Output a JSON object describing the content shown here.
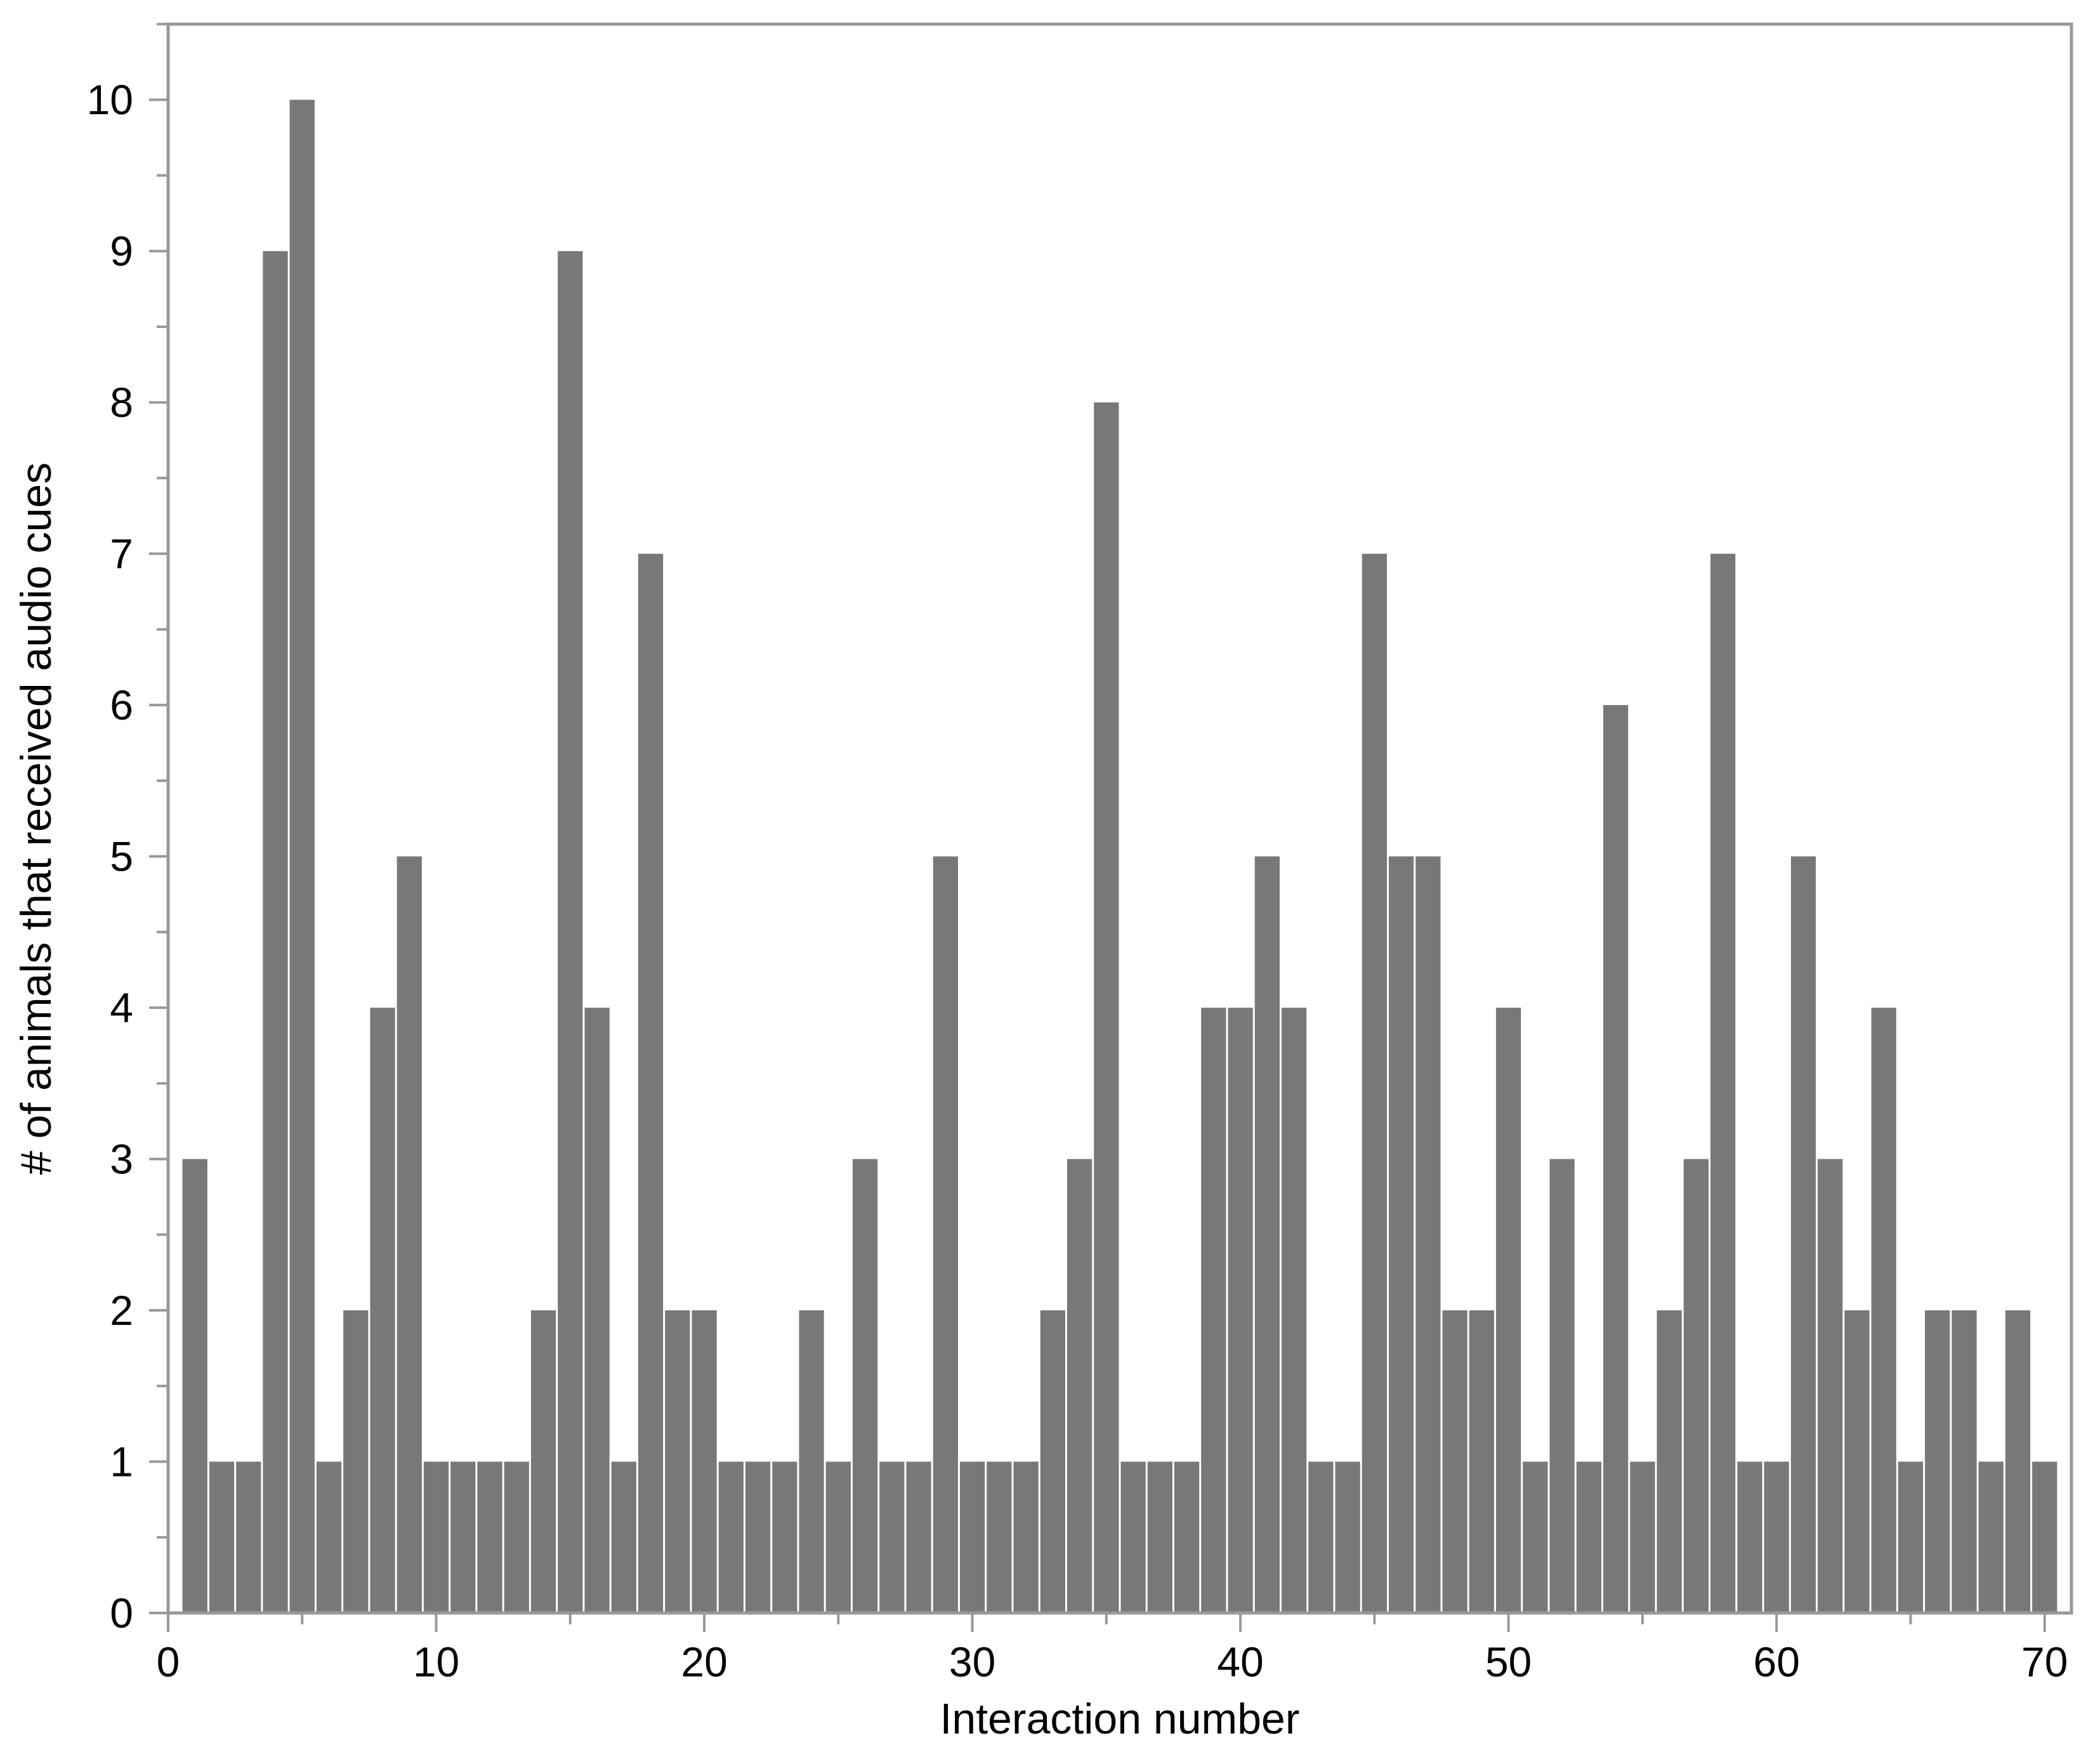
{
  "chart_data": {
    "type": "bar",
    "xlabel": "Interaction number",
    "ylabel": "# of animals that received audio cues",
    "x": [
      1,
      2,
      3,
      4,
      5,
      6,
      7,
      8,
      9,
      10,
      11,
      12,
      13,
      14,
      15,
      16,
      17,
      18,
      19,
      20,
      21,
      22,
      23,
      24,
      25,
      26,
      27,
      28,
      29,
      30,
      31,
      32,
      33,
      34,
      35,
      36,
      37,
      38,
      39,
      40,
      41,
      42,
      43,
      44,
      45,
      46,
      47,
      48,
      49,
      50,
      51,
      52,
      53,
      54,
      55,
      56,
      57,
      58,
      59,
      60,
      61,
      62,
      63,
      64,
      65,
      66,
      67,
      68,
      69,
      70
    ],
    "values": [
      3,
      1,
      1,
      9,
      10,
      1,
      2,
      4,
      5,
      1,
      1,
      1,
      1,
      2,
      9,
      4,
      1,
      7,
      2,
      2,
      1,
      1,
      1,
      2,
      1,
      3,
      1,
      1,
      5,
      1,
      1,
      1,
      2,
      3,
      8,
      1,
      1,
      1,
      4,
      4,
      5,
      4,
      1,
      1,
      7,
      5,
      5,
      2,
      2,
      4,
      1,
      3,
      1,
      6,
      1,
      2,
      3,
      7,
      1,
      1,
      5,
      3,
      2,
      4,
      1,
      2,
      2,
      1,
      2,
      1
    ],
    "xlim": [
      0,
      71
    ],
    "ylim": [
      0,
      10.5
    ],
    "x_ticks": [
      "0",
      "10",
      "20",
      "30",
      "40",
      "50",
      "60",
      "70"
    ],
    "y_ticks": [
      "0",
      "1",
      "2",
      "3",
      "4",
      "5",
      "6",
      "7",
      "8",
      "9",
      "10"
    ],
    "bar_color": "#787878",
    "axis_color": "#999999",
    "grid": false,
    "legend": "none"
  }
}
